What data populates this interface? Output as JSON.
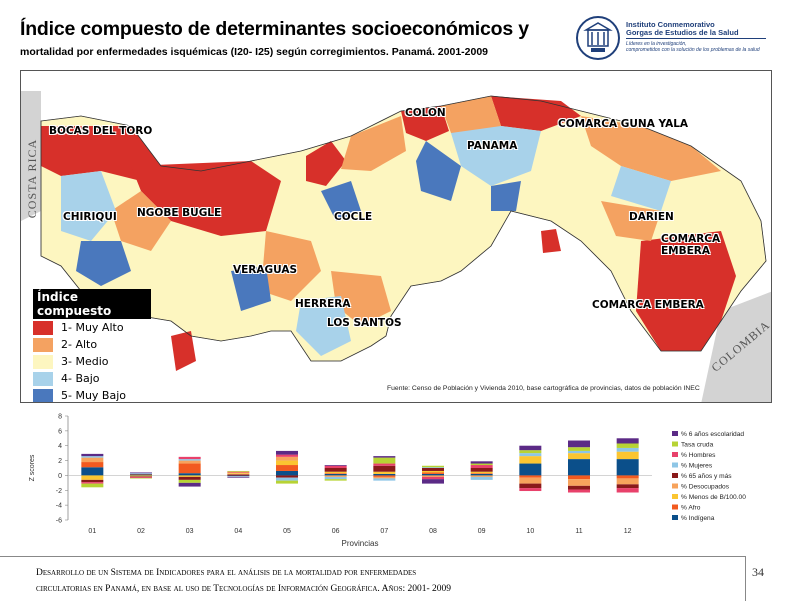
{
  "title": {
    "line1": "Índice compuesto de determinantes socioeconómicos y",
    "line2": "mortalidad por enfermedades isquémicas (I20- I25) según corregimientos. Panamá. 2001-2009"
  },
  "logo": {
    "line1": "Instituto Conmemorativo",
    "line2": "Gorgas de Estudios de la Salud",
    "line3": "Líderes en la investigación,",
    "line4": "comprometidos con la solución de los problemas de la salud"
  },
  "map": {
    "labels": [
      "COLON",
      "BOCAS DEL TORO",
      "COMARCA GUNA YALA",
      "PANAMA",
      "CHIRIQUI",
      "NGOBE BUGLE",
      "COCLE",
      "DARIEN",
      "COMARCA EMBERA",
      "VERAGUAS",
      "HERRERA",
      "LOS SANTOS",
      "COMARCA EMBERA"
    ],
    "countries": [
      "COSTA RICA",
      "COLOMBIA"
    ],
    "source": "Fuente: Censo de Población y Vivienda 2010, base cartográfica de provincias, datos de población INEC",
    "legend": {
      "title": "Índice compuesto",
      "items": [
        {
          "label": "1- Muy Alto",
          "color": "#d7302a"
        },
        {
          "label": "2- Alto",
          "color": "#f4a261"
        },
        {
          "label": "3- Medio",
          "color": "#fdf6c0"
        },
        {
          "label": "4- Bajo",
          "color": "#a8d2ea"
        },
        {
          "label": "5- Muy Bajo",
          "color": "#4a78bd"
        }
      ]
    }
  },
  "chart_data": {
    "type": "bar",
    "stacked": true,
    "categories": [
      "01",
      "02",
      "03",
      "04",
      "05",
      "06",
      "07",
      "08",
      "09",
      "10",
      "11",
      "12"
    ],
    "ylabel": "Z scores",
    "xlabel": "Provincias",
    "ylim": [
      -6,
      8
    ],
    "yticks": [
      -6,
      -4,
      -2,
      0,
      2,
      4,
      6,
      8
    ],
    "grid": false,
    "legend_position": "right",
    "series": [
      {
        "name": "% Indígena",
        "color": "#0b4f8a",
        "values": [
          1.1,
          0.15,
          0.3,
          0.1,
          0.6,
          0.2,
          0.2,
          0.2,
          0.2,
          1.6,
          2.2,
          2.2
        ]
      },
      {
        "name": "% Afro",
        "color": "#f25a1f",
        "values": [
          0.7,
          0.05,
          1.3,
          0.1,
          0.8,
          0.1,
          -0.2,
          0.2,
          0.1,
          -0.3,
          -0.5,
          -0.4
        ]
      },
      {
        "name": "% Menos de B/100.00",
        "color": "#fbc531",
        "values": [
          -0.6,
          -0.1,
          -0.2,
          0.1,
          0.6,
          0.2,
          0.3,
          0.2,
          0.2,
          1.0,
          0.8,
          1.0
        ]
      },
      {
        "name": "% Desocupados",
        "color": "#f7a35c",
        "values": [
          0.6,
          -0.05,
          0.4,
          0.1,
          0.5,
          -0.2,
          -0.2,
          -0.2,
          -0.2,
          -0.8,
          -0.9,
          -0.8
        ]
      },
      {
        "name": "% 65 años y más",
        "color": "#8a1a1a",
        "values": [
          -0.3,
          -0.1,
          -0.4,
          -0.1,
          -0.3,
          0.5,
          0.8,
          0.4,
          0.5,
          -0.6,
          -0.5,
          -0.5
        ]
      },
      {
        "name": "% Mujeres",
        "color": "#8ec6e6",
        "values": [
          0.2,
          0.1,
          0.2,
          -0.1,
          -0.4,
          -0.3,
          -0.3,
          0.1,
          -0.4,
          0.4,
          0.3,
          0.5
        ]
      },
      {
        "name": "% Hombres",
        "color": "#e8416b",
        "values": [
          -0.2,
          -0.1,
          0.3,
          0.1,
          0.3,
          0.3,
          0.3,
          -0.3,
          0.4,
          -0.4,
          -0.4,
          -0.6
        ]
      },
      {
        "name": "Tasa cruda",
        "color": "#b7d334",
        "values": [
          -0.5,
          -0.05,
          -0.4,
          0.1,
          -0.4,
          -0.2,
          0.8,
          0.2,
          0.2,
          0.4,
          0.5,
          0.6
        ]
      },
      {
        "name": "% 6 años escolaridad",
        "color": "#5b2a86",
        "values": [
          0.3,
          0.1,
          -0.5,
          -0.1,
          0.5,
          0.1,
          0.2,
          -0.6,
          0.3,
          0.6,
          0.9,
          0.7
        ]
      }
    ]
  },
  "footer": {
    "line1": "Desarrollo de un Sistema de Indicadores para el análisis de la mortalidad por enfermedades",
    "line2": "circulatorias en Panamá, en base al uso de Tecnologías de Información Geográfica. Años: 2001- 2009",
    "page": "34"
  }
}
